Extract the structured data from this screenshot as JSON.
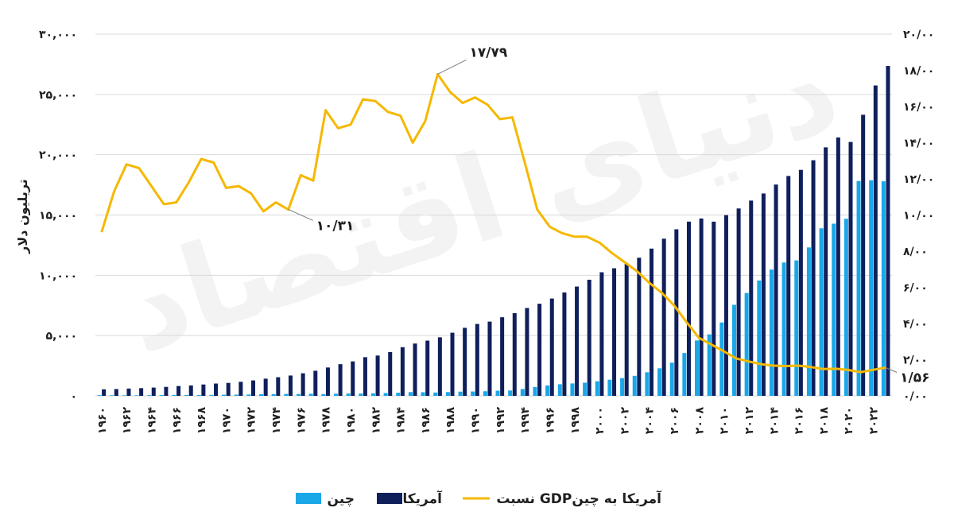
{
  "watermark": "دنیای اقتصاد",
  "chart_data": {
    "type": "bar",
    "ylabel": "تریلیون دلار",
    "left_axis": {
      "ylim": [
        0,
        30000
      ],
      "ticks": [
        0,
        5000,
        10000,
        15000,
        20000,
        25000,
        30000
      ],
      "tick_labels": [
        "۰",
        "۵,۰۰۰",
        "۱۰,۰۰۰",
        "۱۵,۰۰۰",
        "۲۰,۰۰۰",
        "۲۵,۰۰۰",
        "۳۰,۰۰۰"
      ]
    },
    "right_axis": {
      "ylim": [
        0,
        20
      ],
      "ticks": [
        0,
        2,
        4,
        6,
        8,
        10,
        12,
        14,
        16,
        18,
        20
      ],
      "tick_labels": [
        "۰/۰۰",
        "۲/۰۰",
        "۴/۰۰",
        "۶/۰۰",
        "۸/۰۰",
        "۱۰/۰۰",
        "۱۲/۰۰",
        "۱۴/۰۰",
        "۱۶/۰۰",
        "۱۸/۰۰",
        "۲۰/۰۰"
      ]
    },
    "x": [
      1960,
      1961,
      1962,
      1963,
      1964,
      1965,
      1966,
      1967,
      1968,
      1969,
      1970,
      1971,
      1972,
      1973,
      1974,
      1975,
      1976,
      1977,
      1978,
      1979,
      1980,
      1981,
      1982,
      1983,
      1984,
      1985,
      1986,
      1987,
      1988,
      1989,
      1990,
      1991,
      1992,
      1993,
      1994,
      1995,
      1996,
      1997,
      1998,
      1999,
      2000,
      2001,
      2002,
      2003,
      2004,
      2005,
      2006,
      2007,
      2008,
      2009,
      2010,
      2011,
      2012,
      2013,
      2014,
      2015,
      2016,
      2017,
      2018,
      2019,
      2020,
      2021,
      2022,
      2023
    ],
    "x_tick_labels": [
      "۱۹۶۰",
      "۱۹۶۲",
      "۱۹۶۴",
      "۱۹۶۶",
      "۱۹۶۸",
      "۱۹۷۰",
      "۱۹۷۲",
      "۱۹۷۴",
      "۱۹۷۶",
      "۱۹۷۸",
      "۱۹۸۰",
      "۱۹۸۲",
      "۱۹۸۴",
      "۱۹۸۶",
      "۱۹۸۸",
      "۱۹۹۰",
      "۱۹۹۲",
      "۱۹۹۴",
      "۱۹۹۶",
      "۱۹۹۸",
      "۲۰۰۰",
      "۲۰۰۲",
      "۲۰۰۴",
      "۲۰۰۶",
      "۲۰۰۸",
      "۲۰۱۰",
      "۲۰۱۲",
      "۲۰۱۴",
      "۲۰۱۶",
      "۲۰۱۸",
      "۲۰۲۰",
      "۲۰۲۲"
    ],
    "series": [
      {
        "name": "چین",
        "type": "bar",
        "axis": "left",
        "color": "#1aa7e8",
        "values": [
          60,
          50,
          47,
          50,
          59,
          70,
          76,
          73,
          71,
          79,
          93,
          100,
          114,
          139,
          144,
          163,
          154,
          175,
          149,
          178,
          191,
          196,
          205,
          231,
          260,
          309,
          301,
          273,
          312,
          348,
          361,
          383,
          427,
          445,
          564,
          734,
          863,
          962,
          1029,
          1094,
          1211,
          1339,
          1471,
          1660,
          1955,
          2286,
          2752,
          3550,
          4594,
          5101,
          6087,
          7552,
          8532,
          9570,
          10476,
          11062,
          11233,
          12310,
          13895,
          14280,
          14688,
          17820,
          17882,
          17795
        ]
      },
      {
        "name": "آمریکا",
        "type": "bar",
        "axis": "left",
        "color": "#0f1f5c",
        "values": [
          543,
          563,
          605,
          638,
          686,
          744,
          815,
          861,
          942,
          1020,
          1073,
          1165,
          1280,
          1425,
          1545,
          1685,
          1873,
          2081,
          2351,
          2627,
          2857,
          3207,
          3344,
          3634,
          4037,
          4339,
          4580,
          4855,
          5236,
          5642,
          5963,
          6158,
          6520,
          6858,
          7287,
          7640,
          8073,
          8578,
          9063,
          9631,
          10251,
          10582,
          10936,
          11458,
          12214,
          13037,
          13815,
          14452,
          14713,
          14449,
          14992,
          15543,
          16197,
          16785,
          17527,
          18238,
          18745,
          19543,
          20612,
          21433,
          21060,
          23315,
          25744,
          27361
        ]
      },
      {
        "name": "نسبت  GDPآمریکا به چین",
        "type": "line",
        "axis": "right",
        "color": "#f5b800",
        "values": [
          9.05,
          11.3,
          12.8,
          12.6,
          11.6,
          10.6,
          10.7,
          11.8,
          13.1,
          12.9,
          11.5,
          11.6,
          11.2,
          10.2,
          10.7,
          10.3,
          12.2,
          11.9,
          15.8,
          14.8,
          15.0,
          16.4,
          16.3,
          15.7,
          15.5,
          14.0,
          15.2,
          17.79,
          16.8,
          16.2,
          16.5,
          16.1,
          15.3,
          15.4,
          12.9,
          10.3,
          9.35,
          9.0,
          8.8,
          8.8,
          8.47,
          7.9,
          7.4,
          6.9,
          6.25,
          5.7,
          5.0,
          4.07,
          3.2,
          2.83,
          2.46,
          2.06,
          1.9,
          1.75,
          1.67,
          1.65,
          1.67,
          1.59,
          1.48,
          1.5,
          1.43,
          1.31,
          1.44,
          1.56
        ]
      }
    ],
    "annotations": [
      {
        "text": "۱۷/۷۹",
        "x": 1987,
        "y": 17.79
      },
      {
        "text": "۱۰/۳۱",
        "x": 1975,
        "y": 10.31
      },
      {
        "text": "۱/۵۶",
        "x": 2023,
        "y": 1.56
      }
    ],
    "legend": {
      "position": "bottom",
      "entries": [
        {
          "label": "چین",
          "color": "#1aa7e8",
          "kind": "bar"
        },
        {
          "label": "آمریکا",
          "color": "#0f1f5c",
          "kind": "bar"
        },
        {
          "label": "نسبت  GDPآمریکا به چین",
          "color": "#f5b800",
          "kind": "line"
        }
      ]
    },
    "grid": "horizontal"
  }
}
